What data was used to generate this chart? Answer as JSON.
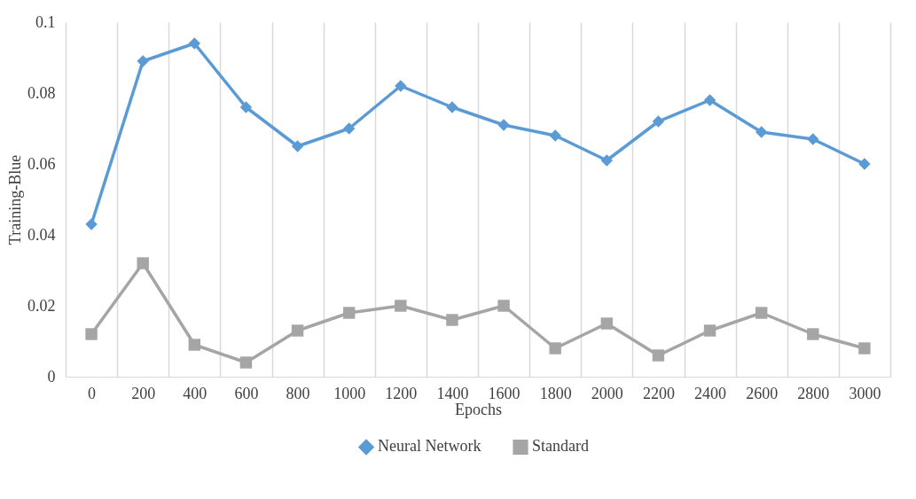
{
  "chart_data": {
    "type": "line",
    "xlabel": "Epochs",
    "ylabel": "Training-Blue",
    "categories": [
      "0",
      "200",
      "400",
      "600",
      "800",
      "1000",
      "1200",
      "1400",
      "1600",
      "1800",
      "2000",
      "2200",
      "2400",
      "2600",
      "2800",
      "3000"
    ],
    "series": [
      {
        "name": "Neural Network",
        "color": "#5b9bd5",
        "marker": "diamond",
        "values": [
          0.043,
          0.089,
          0.094,
          0.076,
          0.065,
          0.07,
          0.082,
          0.076,
          0.071,
          0.068,
          0.061,
          0.072,
          0.078,
          0.069,
          0.067,
          0.06
        ]
      },
      {
        "name": "Standard",
        "color": "#a5a5a5",
        "marker": "square",
        "values": [
          0.012,
          0.032,
          0.009,
          0.004,
          0.013,
          0.018,
          0.02,
          0.016,
          0.02,
          0.008,
          0.015,
          0.006,
          0.013,
          0.018,
          0.012,
          0.008
        ]
      }
    ],
    "ylim": [
      0,
      0.1
    ],
    "yticks": [
      0,
      0.02,
      0.04,
      0.06,
      0.08,
      0.1
    ],
    "grid": "x",
    "legend": "bottom",
    "line_style": "solid"
  }
}
